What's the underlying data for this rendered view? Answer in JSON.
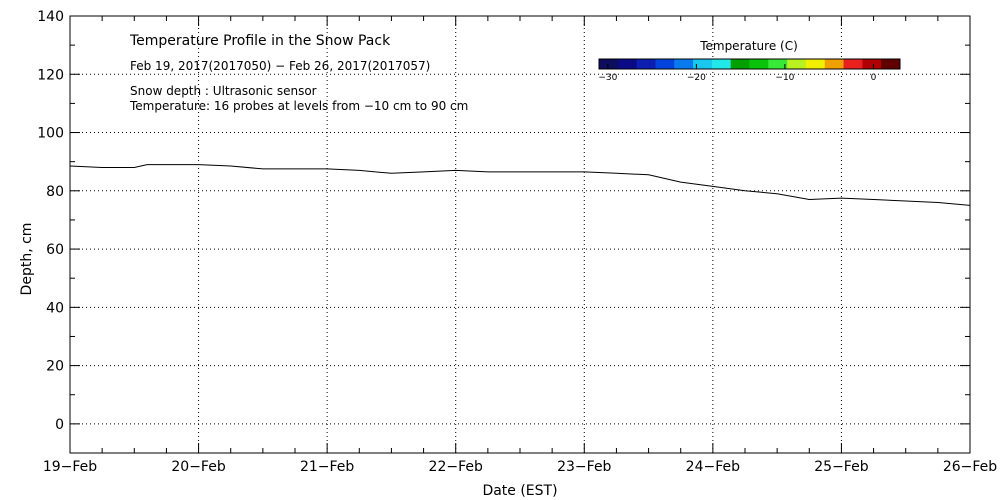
{
  "chart_data": {
    "type": "line",
    "title": "Temperature Profile in the Snow Pack",
    "subtitle": "Feb 19, 2017(2017050) − Feb 26, 2017(2017057)",
    "annotations": [
      "Snow depth : Ultrasonic sensor",
      "Temperature: 16 probes at levels from −10 cm to 90 cm"
    ],
    "xlabel": "Date (EST)",
    "ylabel": "Depth, cm",
    "xlim": [
      0,
      7
    ],
    "ylim": [
      -10,
      140
    ],
    "grid": true,
    "x_ticks": [
      {
        "x": 0,
        "label": "19−Feb"
      },
      {
        "x": 1,
        "label": "20−Feb"
      },
      {
        "x": 2,
        "label": "21−Feb"
      },
      {
        "x": 3,
        "label": "22−Feb"
      },
      {
        "x": 4,
        "label": "23−Feb"
      },
      {
        "x": 5,
        "label": "24−Feb"
      },
      {
        "x": 6,
        "label": "25−Feb"
      },
      {
        "x": 7,
        "label": "26−Feb"
      }
    ],
    "y_ticks": [
      {
        "y": 0,
        "label": "0"
      },
      {
        "y": 20,
        "label": "20"
      },
      {
        "y": 40,
        "label": "40"
      },
      {
        "y": 60,
        "label": "60"
      },
      {
        "y": 80,
        "label": "80"
      },
      {
        "y": 100,
        "label": "100"
      },
      {
        "y": 120,
        "label": "120"
      },
      {
        "y": 140,
        "label": "140"
      }
    ],
    "series": [
      {
        "name": "Snow depth",
        "color": "#000000",
        "x": [
          0,
          0.25,
          0.5,
          0.6,
          0.75,
          1.0,
          1.25,
          1.5,
          1.75,
          2.0,
          2.25,
          2.5,
          2.75,
          3.0,
          3.25,
          3.5,
          3.75,
          4.0,
          4.25,
          4.5,
          4.75,
          5.0,
          5.25,
          5.5,
          5.75,
          6.0,
          6.25,
          6.5,
          6.75,
          7.0
        ],
        "values": [
          88.5,
          88.0,
          88.0,
          89.0,
          89.0,
          89.0,
          88.5,
          87.5,
          87.5,
          87.5,
          87.0,
          86.0,
          86.5,
          87.0,
          86.5,
          86.5,
          86.5,
          86.5,
          86.0,
          85.5,
          83.0,
          81.5,
          80.0,
          79.0,
          77.0,
          77.5,
          77.0,
          76.5,
          76.0,
          75.0
        ]
      }
    ],
    "colorbar": {
      "label": "Temperature (C)",
      "range": [
        -31,
        3
      ],
      "ticks": [
        {
          "value": -30,
          "label": "−30"
        },
        {
          "value": -20,
          "label": "−20"
        },
        {
          "value": -10,
          "label": "−10"
        },
        {
          "value": 0,
          "label": "0"
        }
      ],
      "colors": [
        "#0d0d5e",
        "#0a0a86",
        "#0d1fb0",
        "#0044dd",
        "#0a7bef",
        "#18c8ef",
        "#22e8e8",
        "#00a000",
        "#0ac30a",
        "#38e838",
        "#b8f020",
        "#f0f000",
        "#f0a000",
        "#e82020",
        "#b00000",
        "#600000"
      ]
    }
  }
}
